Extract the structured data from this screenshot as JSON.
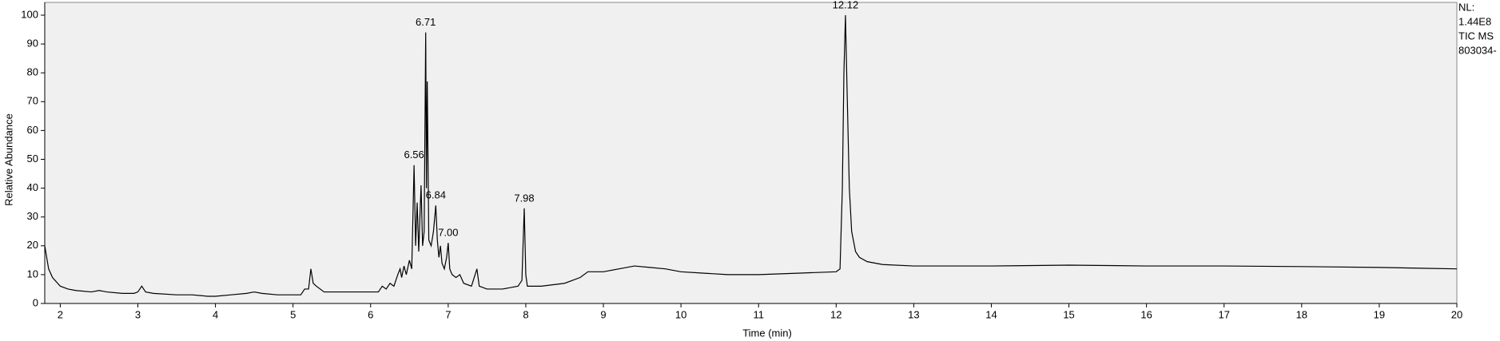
{
  "chart_data": {
    "type": "line",
    "xlabel": "Time (min)",
    "ylabel": "Relative Abundance",
    "color": "#000000",
    "background": "#f0f0f0",
    "xlim": [
      1.8,
      20
    ],
    "xticks": [
      2,
      3,
      4,
      5,
      6,
      7,
      8,
      9,
      10,
      11,
      12,
      13,
      14,
      15,
      16,
      17,
      18,
      19,
      20
    ],
    "ylim": [
      0,
      100
    ],
    "yticks": [
      0,
      10,
      20,
      30,
      40,
      50,
      60,
      70,
      80,
      90,
      100
    ],
    "x": [
      1.8,
      1.85,
      1.9,
      2.0,
      2.1,
      2.2,
      2.4,
      2.5,
      2.6,
      2.8,
      2.95,
      3.0,
      3.05,
      3.1,
      3.2,
      3.5,
      3.7,
      3.9,
      4.0,
      4.2,
      4.4,
      4.5,
      4.6,
      4.8,
      5.0,
      5.1,
      5.15,
      5.2,
      5.23,
      5.26,
      5.3,
      5.4,
      5.6,
      5.8,
      6.0,
      6.1,
      6.15,
      6.2,
      6.25,
      6.3,
      6.35,
      6.38,
      6.4,
      6.43,
      6.46,
      6.5,
      6.53,
      6.56,
      6.58,
      6.6,
      6.62,
      6.65,
      6.67,
      6.69,
      6.71,
      6.72,
      6.73,
      6.75,
      6.78,
      6.81,
      6.84,
      6.86,
      6.88,
      6.9,
      6.92,
      6.95,
      6.98,
      7.0,
      7.02,
      7.05,
      7.1,
      7.15,
      7.2,
      7.3,
      7.37,
      7.4,
      7.5,
      7.7,
      7.9,
      7.95,
      7.98,
      8.0,
      8.02,
      8.2,
      8.5,
      8.7,
      8.8,
      9.0,
      9.2,
      9.4,
      9.6,
      9.8,
      10.0,
      10.3,
      10.6,
      11.0,
      11.5,
      12.0,
      12.05,
      12.08,
      12.1,
      12.12,
      12.14,
      12.17,
      12.2,
      12.25,
      12.3,
      12.4,
      12.6,
      13,
      14,
      15,
      16,
      17,
      18,
      19,
      20
    ],
    "values": [
      20,
      12,
      9,
      6,
      5,
      4.5,
      4,
      4.5,
      4,
      3.5,
      3.5,
      4,
      6,
      4,
      3.5,
      3,
      3,
      2.5,
      2.5,
      3,
      3.5,
      4,
      3.5,
      3,
      3,
      3,
      5,
      5,
      12,
      7,
      6,
      4,
      4,
      4,
      4,
      4,
      6,
      5,
      7,
      6,
      10,
      12,
      9,
      13,
      10,
      15,
      12,
      48,
      20,
      35,
      18,
      41,
      20,
      25,
      94,
      40,
      77,
      22,
      20,
      25,
      34,
      22,
      16,
      20,
      14,
      12,
      16,
      21,
      12,
      10,
      9,
      10,
      7,
      6,
      12,
      6,
      5,
      5,
      6,
      8,
      33,
      10,
      6,
      6,
      7,
      9,
      11,
      11,
      12,
      13,
      12.5,
      12,
      11,
      10.5,
      10,
      10,
      10.5,
      11,
      12,
      40,
      80,
      100,
      75,
      40,
      25,
      18,
      16,
      14.5,
      13.5,
      13,
      13,
      13.3,
      13,
      13,
      12.8,
      12.5,
      12
    ],
    "annotations": [
      {
        "text": "6.56",
        "x": 6.56,
        "y": 48
      },
      {
        "text": "6.71",
        "x": 6.71,
        "y": 94
      },
      {
        "text": "6.84",
        "x": 6.84,
        "y": 34
      },
      {
        "text": "7.00",
        "x": 7.0,
        "y": 21
      },
      {
        "text": "7.98",
        "x": 7.98,
        "y": 33
      },
      {
        "text": "12.12",
        "x": 12.12,
        "y": 100
      }
    ],
    "info": [
      "NL:",
      "1.44E8",
      "TIC MS",
      "803034-"
    ]
  }
}
